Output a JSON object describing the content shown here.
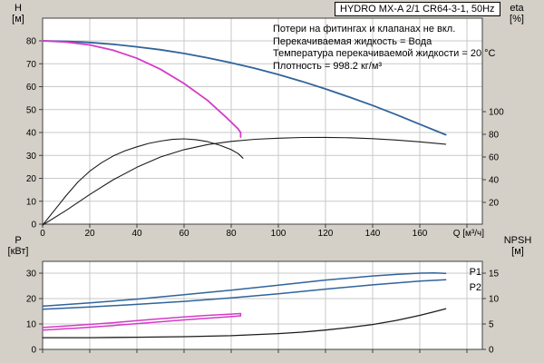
{
  "title_box": "HYDRO MX-A 2/1 CR64-3-1, 50Hz",
  "notes": [
    "Потери на фитингах и клапанах не вкл.",
    "Перекачиваемая жидкость = Вода",
    "Температура перекачиваемой жидкости = 20 °C",
    "Плотность = 998.2 кг/м³"
  ],
  "labels": {
    "h_axis": [
      "H",
      "[м]"
    ],
    "eta_axis": [
      "eta",
      "[%]"
    ],
    "p_axis": [
      "P",
      "[кВт]"
    ],
    "npsh_axis": [
      "NPSH",
      "[м]"
    ]
  },
  "colors": {
    "background": "#d4d0c8",
    "plot_bg": "#ffffff",
    "grid": "#c9c9c9",
    "axis": "#404040",
    "accent_blue": "#30649b",
    "accent_magenta": "#d43bc7",
    "curve_black": "#1c1c1c"
  },
  "chart_data": [
    {
      "type": "line",
      "title": "Head (H) and efficiency (eta) vs flow (Q)",
      "xlabel": "Q [м³/ч]",
      "ylabel_left": "H [м]",
      "ylabel_right": "eta [%]",
      "x_range": [
        0,
        186.5
      ],
      "x_ticks": [
        0,
        20,
        40,
        60,
        80,
        100,
        120,
        140,
        160
      ],
      "x_grid_extra": [
        180
      ],
      "y_left_range": [
        0,
        90
      ],
      "y_left_ticks": [
        0,
        10,
        20,
        30,
        40,
        50,
        60,
        70,
        80
      ],
      "y_right_range": [
        0,
        110
      ],
      "y_right_ticks": [
        20,
        40,
        60,
        80,
        100
      ],
      "grid": "on",
      "series": [
        {
          "name": "head-2-pumps",
          "axis": "left",
          "color": "#30649b",
          "width": 1.8,
          "points": [
            [
              0,
              80
            ],
            [
              10,
              79.8
            ],
            [
              20,
              79.3
            ],
            [
              30,
              78.5
            ],
            [
              40,
              77.4
            ],
            [
              50,
              76.1
            ],
            [
              60,
              74.5
            ],
            [
              70,
              72.6
            ],
            [
              80,
              70.4
            ],
            [
              90,
              68
            ],
            [
              100,
              65.3
            ],
            [
              110,
              62.3
            ],
            [
              120,
              59
            ],
            [
              130,
              55.5
            ],
            [
              140,
              51.8
            ],
            [
              150,
              47.8
            ],
            [
              160,
              43.6
            ],
            [
              171,
              39
            ]
          ]
        },
        {
          "name": "head-1-pump",
          "axis": "left",
          "color": "#d43bc7",
          "width": 1.8,
          "points": [
            [
              0,
              80
            ],
            [
              10,
              79.5
            ],
            [
              20,
              78.2
            ],
            [
              30,
              75.9
            ],
            [
              40,
              72.4
            ],
            [
              50,
              67.6
            ],
            [
              60,
              61.4
            ],
            [
              70,
              54
            ],
            [
              78,
              46.5
            ],
            [
              83,
              41.5
            ],
            [
              84,
              40
            ],
            [
              84,
              38
            ]
          ]
        },
        {
          "name": "eta-2-pumps",
          "axis": "right",
          "color": "#1c1c1c",
          "width": 1.1,
          "points": [
            [
              0,
              0
            ],
            [
              10,
              13
            ],
            [
              20,
              27
            ],
            [
              30,
              40
            ],
            [
              40,
              51
            ],
            [
              50,
              60
            ],
            [
              60,
              66.5
            ],
            [
              70,
              71
            ],
            [
              80,
              73.8
            ],
            [
              90,
              75.6
            ],
            [
              100,
              76.6
            ],
            [
              110,
              77.2
            ],
            [
              120,
              77.3
            ],
            [
              130,
              77
            ],
            [
              140,
              76.2
            ],
            [
              150,
              75
            ],
            [
              160,
              73.4
            ],
            [
              171,
              71.3
            ]
          ]
        },
        {
          "name": "eta-1-pump",
          "axis": "right",
          "color": "#1c1c1c",
          "width": 1.1,
          "points": [
            [
              0,
              0
            ],
            [
              5,
              13
            ],
            [
              10,
              26
            ],
            [
              15,
              38
            ],
            [
              20,
              47.5
            ],
            [
              25,
              55
            ],
            [
              30,
              61
            ],
            [
              35,
              65.5
            ],
            [
              40,
              69
            ],
            [
              45,
              72
            ],
            [
              50,
              74
            ],
            [
              55,
              75.5
            ],
            [
              60,
              76
            ],
            [
              65,
              75.3
            ],
            [
              70,
              73.5
            ],
            [
              75,
              70.5
            ],
            [
              80,
              66.5
            ],
            [
              83,
              63
            ],
            [
              85,
              59
            ]
          ]
        }
      ]
    },
    {
      "type": "line",
      "title": "Power (P) and NPSH vs flow (Q)",
      "xlabel": "",
      "ylabel_left": "P [кВт]",
      "ylabel_right": "NPSH [м]",
      "x_range": [
        0,
        186.5
      ],
      "x_ticks": [
        0,
        20,
        40,
        60,
        80,
        100,
        120,
        140,
        160
      ],
      "x_grid_extra": [
        180
      ],
      "y_left_range": [
        0,
        34.6
      ],
      "y_left_ticks": [
        0,
        10,
        20,
        30
      ],
      "y_right_range": [
        0,
        17.3
      ],
      "y_right_ticks": [
        0,
        5,
        10,
        15
      ],
      "grid": "on",
      "series": [
        {
          "name": "p1-2-pumps",
          "axis": "left",
          "color": "#30649b",
          "width": 1.5,
          "label": "P1",
          "label_at": [
            181,
            29.3
          ],
          "points": [
            [
              0,
              17
            ],
            [
              20,
              18.3
            ],
            [
              40,
              19.8
            ],
            [
              60,
              21.5
            ],
            [
              80,
              23.3
            ],
            [
              100,
              25.3
            ],
            [
              120,
              27.3
            ],
            [
              140,
              28.9
            ],
            [
              150,
              29.5
            ],
            [
              160,
              30
            ],
            [
              166,
              30.1
            ],
            [
              171,
              29.9
            ]
          ]
        },
        {
          "name": "p2-2-pumps",
          "axis": "left",
          "color": "#30649b",
          "width": 1.5,
          "label": "P2",
          "label_at": [
            181,
            23.3
          ],
          "points": [
            [
              0,
              15.8
            ],
            [
              20,
              16.7
            ],
            [
              40,
              17.7
            ],
            [
              60,
              18.9
            ],
            [
              80,
              20.3
            ],
            [
              100,
              21.9
            ],
            [
              120,
              23.7
            ],
            [
              140,
              25.4
            ],
            [
              160,
              26.9
            ],
            [
              171,
              27.4
            ]
          ]
        },
        {
          "name": "p1-1-pump",
          "axis": "left",
          "color": "#d43bc7",
          "width": 1.5,
          "points": [
            [
              0,
              8.6
            ],
            [
              15,
              9.5
            ],
            [
              30,
              10.5
            ],
            [
              45,
              11.7
            ],
            [
              60,
              12.8
            ],
            [
              70,
              13.4
            ],
            [
              80,
              13.9
            ],
            [
              84,
              14.1
            ],
            [
              84,
              13.2
            ]
          ]
        },
        {
          "name": "p2-1-pump",
          "axis": "left",
          "color": "#d43bc7",
          "width": 1.5,
          "points": [
            [
              0,
              7.6
            ],
            [
              15,
              8.4
            ],
            [
              30,
              9.4
            ],
            [
              45,
              10.5
            ],
            [
              60,
              11.6
            ],
            [
              70,
              12.3
            ],
            [
              80,
              12.9
            ],
            [
              84,
              13.2
            ]
          ]
        },
        {
          "name": "npsh",
          "axis": "right",
          "color": "#1c1c1c",
          "width": 1.3,
          "points": [
            [
              0,
              2.3
            ],
            [
              20,
              2.3
            ],
            [
              40,
              2.4
            ],
            [
              60,
              2.5
            ],
            [
              80,
              2.7
            ],
            [
              100,
              3.1
            ],
            [
              110,
              3.4
            ],
            [
              120,
              3.8
            ],
            [
              130,
              4.3
            ],
            [
              140,
              4.9
            ],
            [
              150,
              5.7
            ],
            [
              160,
              6.7
            ],
            [
              166,
              7.4
            ],
            [
              171,
              8
            ]
          ]
        }
      ]
    }
  ]
}
